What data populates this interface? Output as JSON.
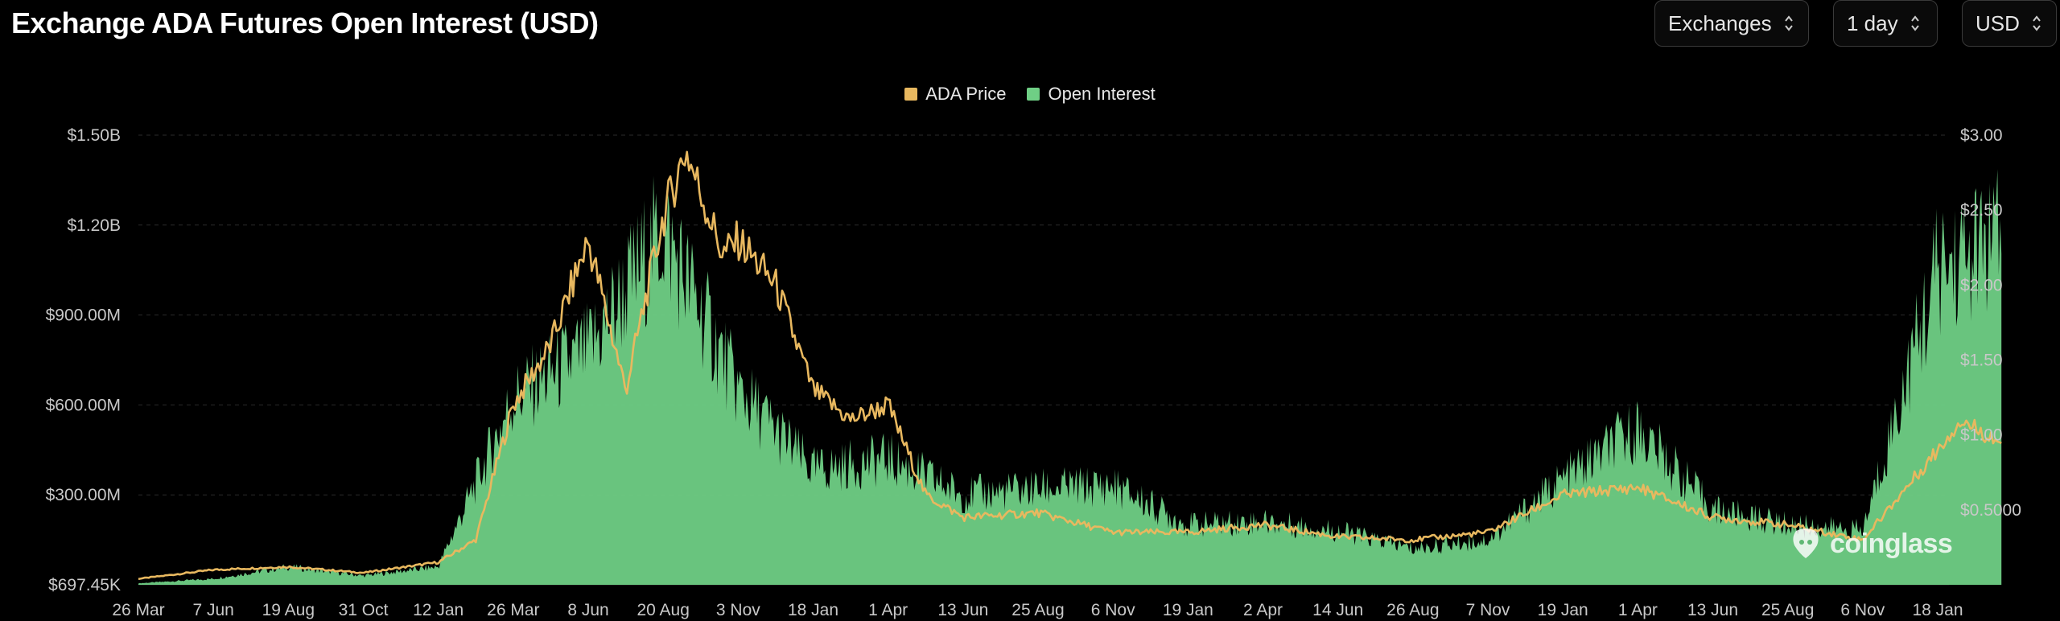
{
  "header": {
    "title": "Exchange ADA Futures Open Interest (USD)",
    "controls": [
      {
        "label": "Exchanges"
      },
      {
        "label": "1 day"
      },
      {
        "label": "USD"
      }
    ]
  },
  "watermark": {
    "text": "coinglass",
    "icon": "coinglass-logo-icon"
  },
  "colors": {
    "price": "#e8b85f",
    "oi": "#6fcf85",
    "grid": "#2a2a2a",
    "background": "#000000"
  },
  "chart_data": {
    "type": "area",
    "title": "Exchange ADA Futures Open Interest (USD)",
    "legend": [
      {
        "name": "ADA Price",
        "color": "#e8b85f"
      },
      {
        "name": "Open Interest",
        "color": "#6fcf85"
      }
    ],
    "legend_position": "top-center",
    "grid": true,
    "x_tick_labels": [
      "26 Mar",
      "7 Jun",
      "19 Aug",
      "31 Oct",
      "12 Jan",
      "26 Mar",
      "8 Jun",
      "20 Aug",
      "3 Nov",
      "18 Jan",
      "1 Apr",
      "13 Jun",
      "25 Aug",
      "6 Nov",
      "19 Jan",
      "2 Apr",
      "14 Jun",
      "26 Aug",
      "7 Nov",
      "19 Jan",
      "1 Apr",
      "13 Jun",
      "25 Aug",
      "6 Nov",
      "18 Jan"
    ],
    "y_left": {
      "ticks": [
        "$697.45K",
        "$300.00M",
        "$600.00M",
        "$900.00M",
        "$1.20B",
        "$1.50B"
      ],
      "range": [
        0,
        1500000000
      ]
    },
    "y_right": {
      "ticks": [
        "$0.5000",
        "$1.00",
        "$1.50",
        "$2.00",
        "$2.50",
        "$3.00"
      ],
      "range": [
        0,
        3.0
      ]
    },
    "series": [
      {
        "name": "Open Interest",
        "axis": "left",
        "unit": "USD",
        "x_index": [
          0,
          1,
          2,
          3,
          4,
          5,
          6,
          7,
          8,
          9,
          10,
          11,
          12,
          13,
          14,
          15,
          16,
          17,
          18,
          19,
          20,
          21,
          22,
          23,
          24,
          24.85
        ],
        "values": [
          5000000,
          20000000,
          60000000,
          30000000,
          60000000,
          620000000,
          780000000,
          1180000000,
          650000000,
          380000000,
          420000000,
          300000000,
          320000000,
          330000000,
          200000000,
          210000000,
          180000000,
          120000000,
          150000000,
          350000000,
          520000000,
          250000000,
          200000000,
          180000000,
          1050000000,
          1150000000
        ]
      },
      {
        "name": "ADA Price",
        "axis": "right",
        "unit": "USD",
        "x_index": [
          0,
          1,
          2,
          3,
          4,
          4.5,
          5,
          5.5,
          6,
          6.5,
          7,
          7.3,
          7.8,
          8,
          8.5,
          9,
          9.5,
          10,
          10.5,
          11,
          12,
          13,
          14,
          15,
          16,
          17,
          18,
          19,
          20,
          21,
          22,
          23,
          23.5,
          24,
          24.3,
          24.85
        ],
        "values": [
          0.04,
          0.1,
          0.12,
          0.08,
          0.15,
          0.3,
          1.2,
          1.6,
          2.3,
          1.3,
          2.45,
          2.9,
          2.2,
          2.3,
          2.0,
          1.3,
          1.1,
          1.2,
          0.6,
          0.45,
          0.48,
          0.35,
          0.35,
          0.4,
          0.32,
          0.3,
          0.35,
          0.6,
          0.65,
          0.45,
          0.4,
          0.3,
          0.6,
          0.9,
          1.1,
          0.95
        ]
      }
    ]
  }
}
